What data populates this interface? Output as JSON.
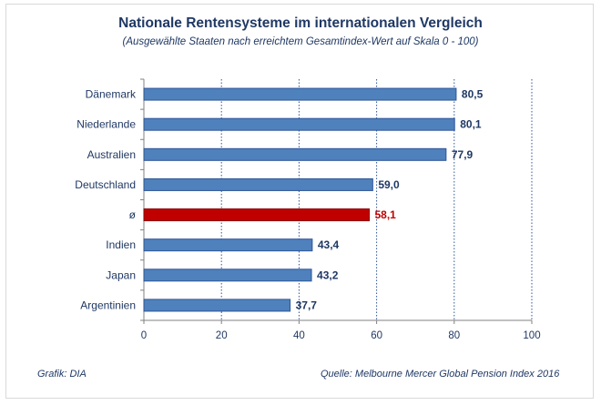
{
  "chart_data": {
    "type": "bar",
    "orientation": "horizontal",
    "title": "Nationale Rentensysteme im internationalen Vergleich",
    "subtitle": "(Ausgewählte Staaten nach erreichtem Gesamtindex-Wert auf Skala 0 - 100)",
    "categories": [
      "Dänemark",
      "Niederlande",
      "Australien",
      "Deutschland",
      "ø",
      "Indien",
      "Japan",
      "Argentinien"
    ],
    "values": [
      80.5,
      80.1,
      77.9,
      59.0,
      58.1,
      43.4,
      43.2,
      37.7
    ],
    "value_labels": [
      "80,5",
      "80,1",
      "77,9",
      "59,0",
      "58,1",
      "43,4",
      "43,2",
      "37,7"
    ],
    "highlight_category": "ø",
    "xlim": [
      0,
      100
    ],
    "xticks": [
      0,
      20,
      40,
      60,
      80,
      100
    ],
    "grid": "vertical dotted",
    "colors": {
      "bar": "#4f81bd",
      "bar_border": "#2f5597",
      "highlight": "#c00000",
      "text": "#1f3864",
      "highlight_text": "#c00000",
      "grid": "#2f5597"
    }
  },
  "footer": {
    "source_left": "Grafik: DIA",
    "source_right": "Quelle: Melbourne Mercer Global Pension Index 2016"
  }
}
